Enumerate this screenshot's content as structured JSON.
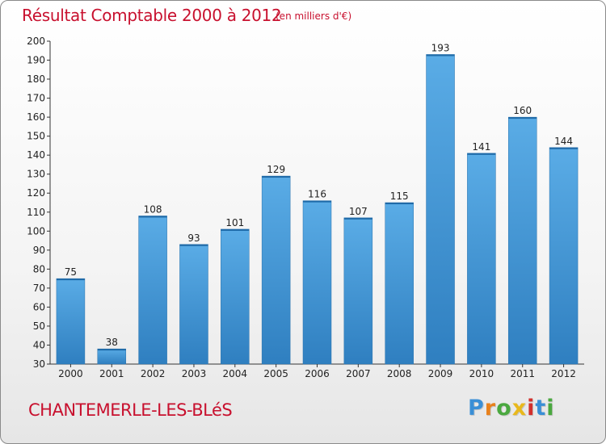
{
  "page": {
    "title": "Résultat Comptable 2000 à 2012",
    "subtitle": "(en milliers d'€)",
    "commune": "CHANTEMERLE-LES-BLéS",
    "logo_text": "Proxiti",
    "logo_letters": [
      {
        "ch": "P",
        "color": "#3a8fd6"
      },
      {
        "ch": "r",
        "color": "#e8811c"
      },
      {
        "ch": "o",
        "color": "#4aa83f"
      },
      {
        "ch": "x",
        "color": "#e8b81c"
      },
      {
        "ch": "i",
        "color": "#d2302c"
      },
      {
        "ch": "t",
        "color": "#3a8fd6"
      },
      {
        "ch": "i",
        "color": "#4aa83f"
      }
    ]
  },
  "colors": {
    "title": "#c8102e",
    "bar_top": "#5aace6",
    "bar_bottom": "#2f7fc0",
    "grid": "#d0d0d0",
    "axis": "#333333"
  },
  "chart_data": {
    "type": "bar",
    "title": "Résultat Comptable 2000 à 2012",
    "xlabel": "",
    "ylabel": "",
    "categories": [
      "2000",
      "2001",
      "2002",
      "2003",
      "2004",
      "2005",
      "2006",
      "2007",
      "2008",
      "2009",
      "2010",
      "2011",
      "2012"
    ],
    "values": [
      75,
      38,
      108,
      93,
      101,
      129,
      116,
      107,
      115,
      193,
      141,
      160,
      144
    ],
    "ylim": [
      30,
      200
    ],
    "yticks": [
      30,
      40,
      50,
      60,
      70,
      80,
      90,
      100,
      110,
      120,
      130,
      140,
      150,
      160,
      170,
      180,
      190,
      200
    ],
    "grid": false,
    "legend": "none"
  }
}
